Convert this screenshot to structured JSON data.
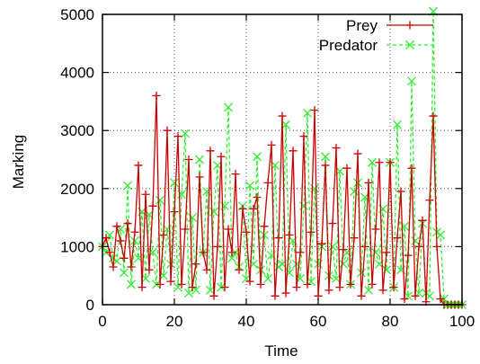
{
  "chart_data": {
    "type": "line",
    "xlabel": "Time",
    "ylabel": "Marking",
    "xlim": [
      0,
      100
    ],
    "ylim": [
      0,
      5000
    ],
    "x_ticks": [
      0,
      20,
      40,
      60,
      80,
      100
    ],
    "y_ticks": [
      0,
      1000,
      2000,
      3000,
      4000,
      5000
    ],
    "grid": true,
    "legend_position": "top-right",
    "series": [
      {
        "name": "Prey",
        "color": "#cc0000",
        "line": "solid",
        "marker": "plus",
        "x": [
          0,
          1,
          2,
          3,
          4,
          5,
          6,
          7,
          8,
          9,
          10,
          11,
          12,
          13,
          14,
          15,
          16,
          17,
          18,
          19,
          20,
          21,
          22,
          23,
          24,
          25,
          26,
          27,
          28,
          29,
          30,
          31,
          32,
          33,
          34,
          35,
          36,
          37,
          38,
          39,
          40,
          41,
          42,
          43,
          44,
          45,
          46,
          47,
          48,
          49,
          50,
          51,
          52,
          53,
          54,
          55,
          56,
          57,
          58,
          59,
          60,
          61,
          62,
          63,
          64,
          65,
          66,
          67,
          68,
          69,
          70,
          71,
          72,
          73,
          74,
          75,
          76,
          77,
          78,
          79,
          80,
          81,
          82,
          83,
          84,
          85,
          86,
          87,
          88,
          89,
          90,
          91,
          92,
          93,
          94,
          95,
          96,
          97,
          98,
          99,
          100
        ],
        "y": [
          1000,
          1150,
          900,
          650,
          1350,
          1100,
          800,
          1400,
          650,
          1250,
          2400,
          300,
          1900,
          600,
          1700,
          3600,
          350,
          1200,
          3000,
          400,
          1600,
          2900,
          350,
          1300,
          2500,
          300,
          700,
          2200,
          900,
          600,
          2650,
          150,
          1000,
          2550,
          300,
          1300,
          900,
          2250,
          600,
          1650,
          1250,
          400,
          1650,
          1850,
          350,
          1350,
          2100,
          2750,
          150,
          1150,
          3250,
          200,
          1200,
          2650,
          300,
          900,
          2900,
          350,
          1250,
          3350,
          150,
          1050,
          2400,
          250,
          1400,
          2700,
          300,
          950,
          2350,
          350,
          1150,
          2600,
          150,
          1000,
          2100,
          350,
          1300,
          2450,
          250,
          900,
          2450,
          300,
          1150,
          1950,
          100,
          850,
          2350,
          150,
          1000,
          1450,
          50,
          1800,
          3250,
          1000,
          100,
          0,
          0,
          0,
          0,
          0,
          0
        ]
      },
      {
        "name": "Predator",
        "color": "#33ee33",
        "line": "dashed",
        "marker": "x",
        "x": [
          0,
          1,
          2,
          3,
          4,
          5,
          6,
          7,
          8,
          9,
          10,
          11,
          12,
          13,
          14,
          15,
          16,
          17,
          18,
          19,
          20,
          21,
          22,
          23,
          24,
          25,
          26,
          27,
          28,
          29,
          30,
          31,
          32,
          33,
          34,
          35,
          36,
          37,
          38,
          39,
          40,
          41,
          42,
          43,
          44,
          45,
          46,
          47,
          48,
          49,
          50,
          51,
          52,
          53,
          54,
          55,
          56,
          57,
          58,
          59,
          60,
          61,
          62,
          63,
          64,
          65,
          66,
          67,
          68,
          69,
          70,
          71,
          72,
          73,
          74,
          75,
          76,
          77,
          78,
          79,
          80,
          81,
          82,
          83,
          84,
          85,
          86,
          87,
          88,
          89,
          90,
          91,
          92,
          93,
          94,
          95,
          96,
          97,
          98,
          99,
          100
        ],
        "y": [
          1000,
          900,
          1200,
          800,
          750,
          1300,
          550,
          2050,
          350,
          1100,
          800,
          1600,
          450,
          1550,
          900,
          350,
          1800,
          500,
          1300,
          700,
          2100,
          300,
          1900,
          2950,
          200,
          1500,
          250,
          2500,
          900,
          1950,
          250,
          1600,
          2400,
          300,
          1700,
          3400,
          800,
          900,
          650,
          1700,
          450,
          2050,
          700,
          2550,
          600,
          1200,
          450,
          850,
          2400,
          650,
          700,
          3100,
          550,
          1100,
          700,
          450,
          1700,
          3300,
          400,
          2000,
          700,
          1000,
          2550,
          500,
          1000,
          450,
          2300,
          700,
          900,
          350,
          1950,
          2100,
          550,
          1850,
          250,
          2450,
          900,
          700,
          1650,
          600,
          2450,
          300,
          3100,
          600,
          1350,
          150,
          3850,
          1100,
          200,
          1400,
          200,
          150,
          5050,
          1250,
          1200,
          100,
          0,
          0,
          0,
          0,
          0
        ]
      }
    ]
  }
}
